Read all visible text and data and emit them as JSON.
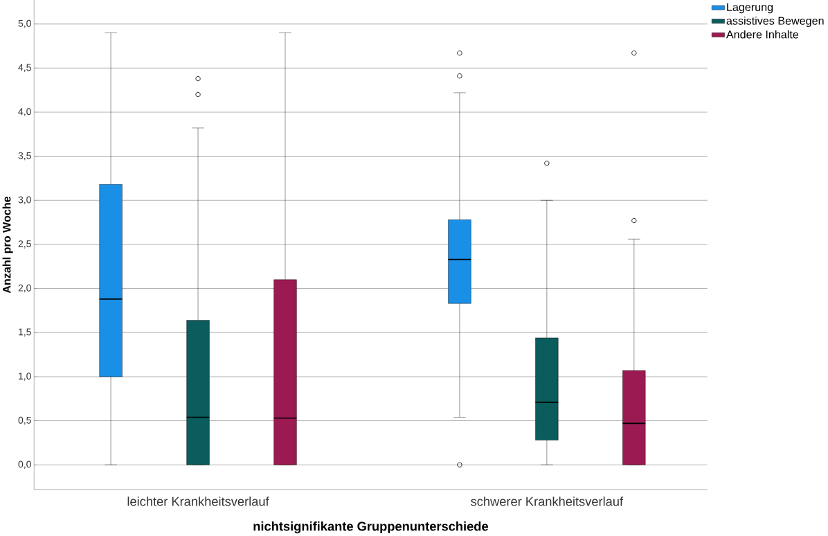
{
  "chart_data": {
    "type": "box",
    "xlabel": "nichtsignifikante Gruppenunterschiede",
    "ylabel": "Anzahl pro Woche",
    "categories": [
      "leichter Krankheitsverlauf",
      "schwerer Krankheitsverlauf"
    ],
    "ylim": [
      -0.28,
      5.27
    ],
    "yticks": [
      {
        "value": 0,
        "label": "0,0"
      },
      {
        "value": 0.5,
        "label": "0,5"
      },
      {
        "value": 1,
        "label": "1,0"
      },
      {
        "value": 1.5,
        "label": "1,5"
      },
      {
        "value": 2,
        "label": "2,0"
      },
      {
        "value": 2.5,
        "label": "2,5"
      },
      {
        "value": 3,
        "label": "3,0"
      },
      {
        "value": 3.5,
        "label": "3,5"
      },
      {
        "value": 4,
        "label": "4,0"
      },
      {
        "value": 4.5,
        "label": "4,5"
      },
      {
        "value": 5,
        "label": "5,0"
      }
    ],
    "grid": "y",
    "legend": "top right",
    "series": [
      {
        "name": "Lagerung",
        "color": "#1a8fe6",
        "boxes": [
          {
            "low": 0,
            "q1": 1.0,
            "median": 1.88,
            "q3": 3.18,
            "high": 4.9
          },
          {
            "low": 0.54,
            "q1": 1.83,
            "median": 2.33,
            "q3": 2.78,
            "high": 4.22,
            "outliers": [
              0,
              4.41,
              4.67
            ]
          }
        ]
      },
      {
        "name": "assistives Bewegen",
        "color": "#0b5c5c",
        "boxes": [
          {
            "low": 0,
            "q1": 0,
            "median": 0.54,
            "q3": 1.64,
            "high": 3.82,
            "outliers": [
              4.2,
              4.38
            ]
          },
          {
            "low": 0,
            "q1": 0.28,
            "median": 0.71,
            "q3": 1.44,
            "high": 3.0,
            "outliers": [
              3.42
            ]
          }
        ]
      },
      {
        "name": "Andere Inhalte",
        "color": "#9c1a52",
        "boxes": [
          {
            "low": 0,
            "q1": 0,
            "median": 0.53,
            "q3": 2.1,
            "high": 4.9
          },
          {
            "low": 0,
            "q1": 0,
            "median": 0.47,
            "q3": 1.07,
            "high": 2.56,
            "outliers": [
              2.77,
              4.67
            ]
          }
        ]
      }
    ]
  }
}
